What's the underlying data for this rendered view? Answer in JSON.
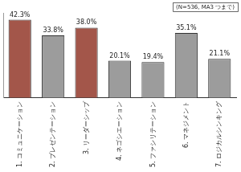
{
  "chart_data": {
    "type": "bar",
    "annotation": "(N=536, MA3 つまで)",
    "categories": [
      "1. コミュニケーション",
      "2. プレゼンテーション",
      "3. リーダーシップ",
      "4. ネゴシエーション",
      "5. ファシリテーション",
      "6. マネジメント",
      "7. ロジカルシンキング"
    ],
    "values": [
      42.3,
      33.8,
      38.0,
      20.1,
      19.4,
      35.1,
      21.1
    ],
    "value_labels": [
      "42.3%",
      "33.8%",
      "38.0%",
      "20.1%",
      "19.4%",
      "35.1%",
      "21.1%"
    ],
    "colors": [
      "#a3564a",
      "#9c9c9c",
      "#a3564a",
      "#9c9c9c",
      "#9c9c9c",
      "#9c9c9c",
      "#9c9c9c"
    ],
    "ylim": [
      0,
      46
    ],
    "data_labels": true,
    "tick_labels": "x",
    "grid": false
  }
}
